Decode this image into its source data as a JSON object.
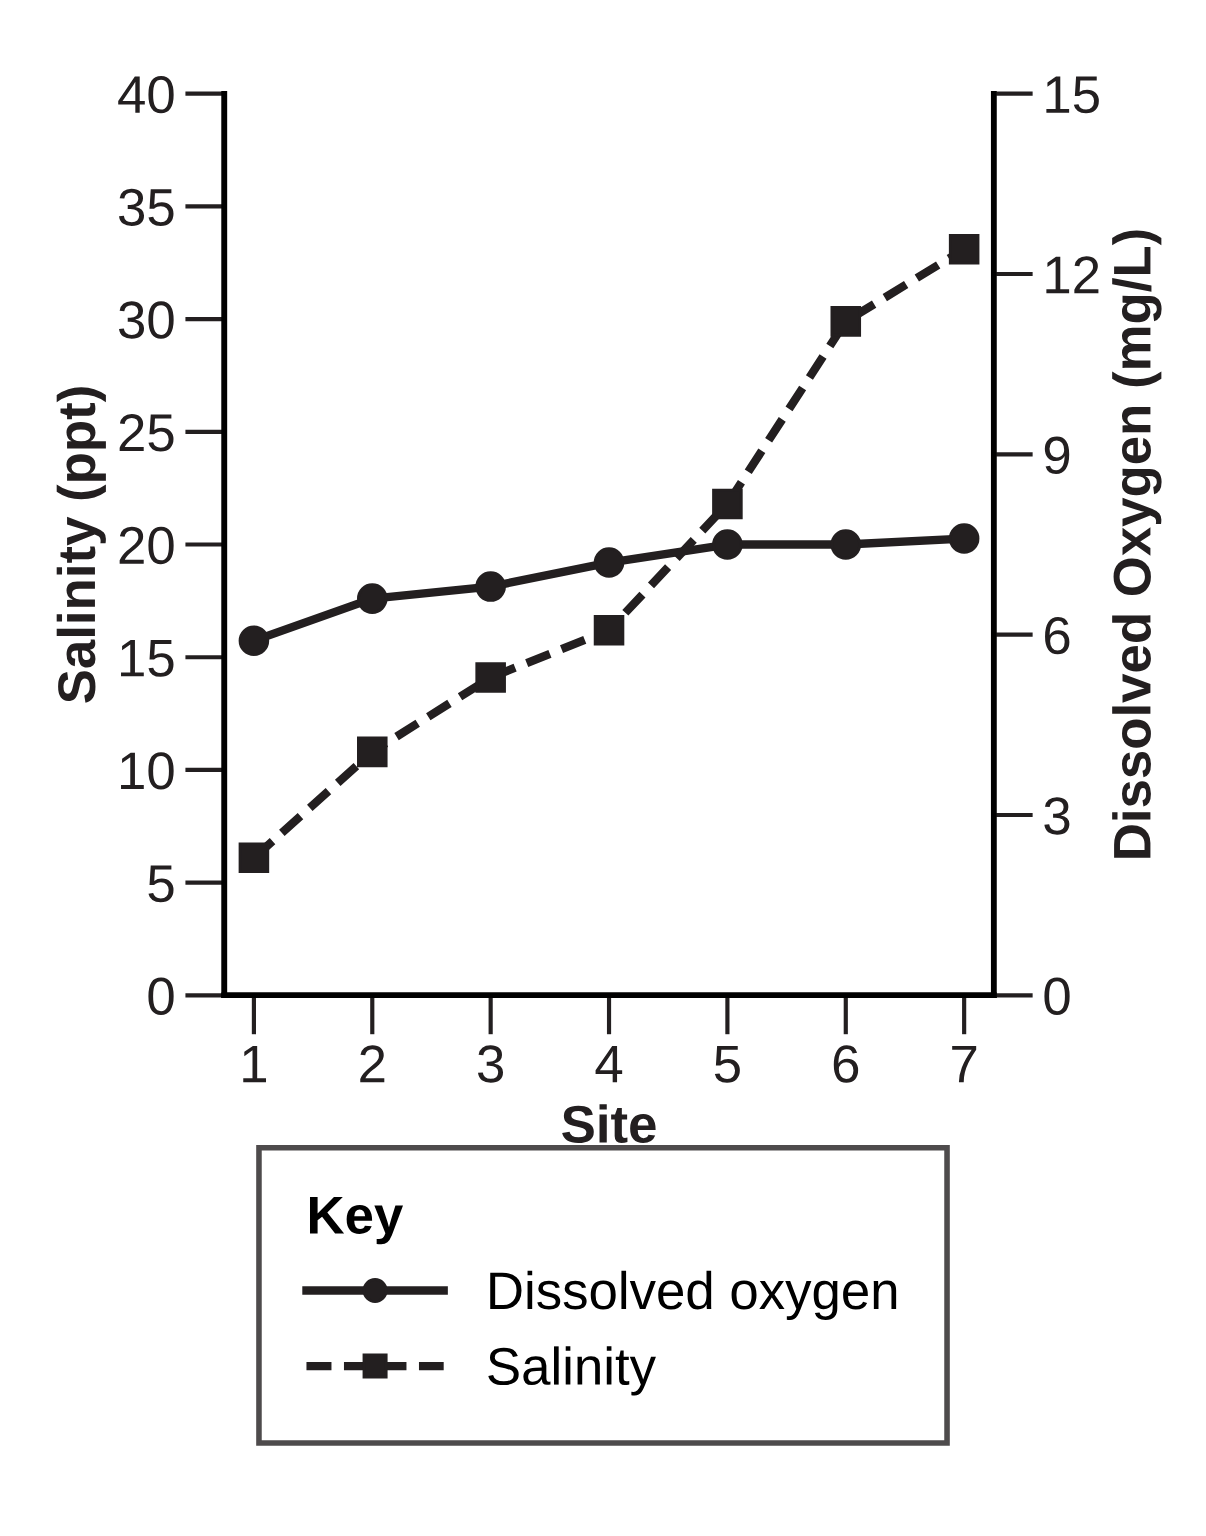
{
  "chart_data": {
    "type": "line",
    "xlabel": "Site",
    "ylabel": "Salinity (ppt)",
    "y2label": "Dissolved Oxygen (mg/L)",
    "categories": [
      "1",
      "2",
      "3",
      "4",
      "5",
      "6",
      "7"
    ],
    "series": [
      {
        "name": "Dissolved oxygen",
        "color": "#231f20",
        "axis": "y2",
        "marker": "circle",
        "line_style": "solid",
        "values": [
          5.9,
          6.6,
          6.8,
          7.2,
          7.5,
          7.5,
          7.6
        ]
      },
      {
        "name": "Salinity",
        "color": "#231f20",
        "marker": "square",
        "line_style": "dashed",
        "values": [
          6.1,
          10.8,
          14.1,
          16.2,
          21.8,
          29.9,
          33.1
        ]
      }
    ],
    "ylim": [
      0,
      40
    ],
    "yticks": [
      0,
      5,
      10,
      15,
      20,
      25,
      30,
      35,
      40
    ],
    "y2lim": [
      0,
      15
    ],
    "y2ticks": [
      0,
      3,
      6,
      9,
      12,
      15
    ],
    "legend": "bottom",
    "legend_title": "Key",
    "grid": false
  }
}
